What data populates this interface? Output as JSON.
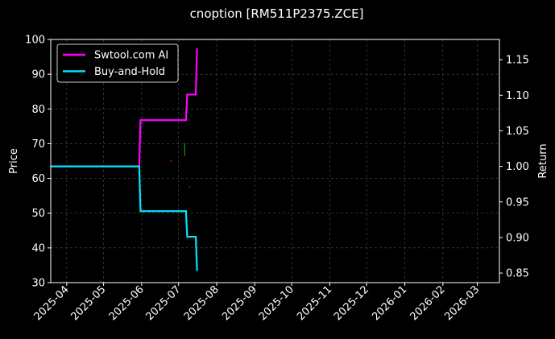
{
  "chart_data": {
    "type": "line",
    "title": "cnoption [RM511P2375.ZCE]",
    "xlabel": "",
    "ylabel": "Price",
    "ylabel_right": "Return",
    "ylim": [
      30,
      100
    ],
    "ylim_right": [
      0.8365,
      1.1785
    ],
    "xlim": [
      "2025-03-19",
      "2026-03-19"
    ],
    "grid": true,
    "legend_position": "upper-left",
    "x_ticks": [
      "2025-04",
      "2025-05",
      "2025-06",
      "2025-07",
      "2025-08",
      "2025-09",
      "2025-10",
      "2025-11",
      "2025-12",
      "2026-01",
      "2026-02",
      "2026-03"
    ],
    "y_ticks": [
      30,
      40,
      50,
      60,
      70,
      80,
      90,
      100
    ],
    "y_ticks_right": [
      0.85,
      0.9,
      0.95,
      1.0,
      1.05,
      1.1,
      1.15
    ],
    "series": [
      {
        "name": "Swtool.com AI",
        "color": "#ff00ff",
        "axis": "right",
        "points": [
          [
            "2025-03-19",
            1.0
          ],
          [
            "2025-05-30",
            1.0
          ],
          [
            "2025-05-31",
            1.065
          ],
          [
            "2025-07-07",
            1.065
          ],
          [
            "2025-07-08",
            1.101
          ],
          [
            "2025-07-15",
            1.101
          ],
          [
            "2025-07-16",
            1.166
          ]
        ]
      },
      {
        "name": "Buy-and-Hold",
        "color": "#00e5ff",
        "axis": "right",
        "points": [
          [
            "2025-03-19",
            1.0
          ],
          [
            "2025-05-30",
            1.0
          ],
          [
            "2025-05-31",
            0.937
          ],
          [
            "2025-07-07",
            0.937
          ],
          [
            "2025-07-08",
            0.901
          ],
          [
            "2025-07-15",
            0.901
          ],
          [
            "2025-07-16",
            0.853
          ]
        ]
      }
    ],
    "markers": [
      {
        "date": "2025-06-25",
        "value": 65,
        "color": "#ff0000"
      },
      {
        "date": "2025-07-10",
        "value": 57.5,
        "color": "#ff0000"
      }
    ],
    "bars": [
      {
        "date": "2025-07-06",
        "low": 66.5,
        "high": 70.2,
        "color": "#00aa00"
      }
    ]
  }
}
